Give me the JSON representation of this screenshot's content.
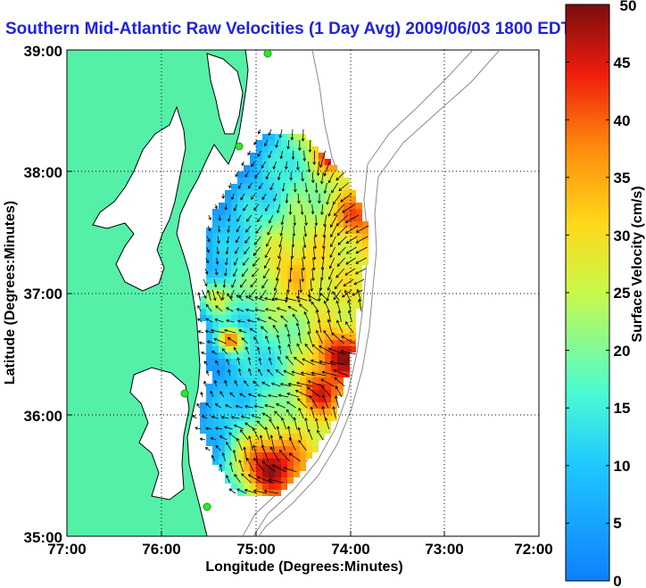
{
  "chart_data": {
    "type": "heatmap",
    "title": "Southern Mid-Atlantic Raw Velocities (1 Day Avg) 2009/06/03 1800 EDT",
    "xlabel": "Longitude (Degrees:Minutes)",
    "ylabel": "Latitude (Degrees:Minutes)",
    "x_ticks": [
      "77:00",
      "76:00",
      "75:00",
      "74:00",
      "73:00",
      "72:00"
    ],
    "y_ticks": [
      "39:00",
      "38:00",
      "37:00",
      "36:00",
      "35:00"
    ],
    "xlim": [
      -77,
      -72
    ],
    "ylim": [
      35,
      39
    ],
    "grid": true,
    "colorbar": {
      "label": "Surface Velocity (cm/s)",
      "range": [
        0,
        50
      ],
      "ticks": [
        "0",
        "5",
        "10",
        "15",
        "20",
        "25",
        "30",
        "35",
        "40",
        "45",
        "50"
      ]
    },
    "colors": {
      "land": "#55f0a8",
      "title": "#1f23e0",
      "vectors": "#000000",
      "coast": "#000000",
      "bathymetry": "#8a8a8a",
      "station": "#38e038"
    },
    "stations": [
      {
        "lon": -74.88,
        "lat": 38.97
      },
      {
        "lon": -75.09,
        "lat": 38.23
      },
      {
        "lon": -75.21,
        "lat": 36.19
      },
      {
        "lon": -75.45,
        "lat": 35.2
      }
    ]
  }
}
